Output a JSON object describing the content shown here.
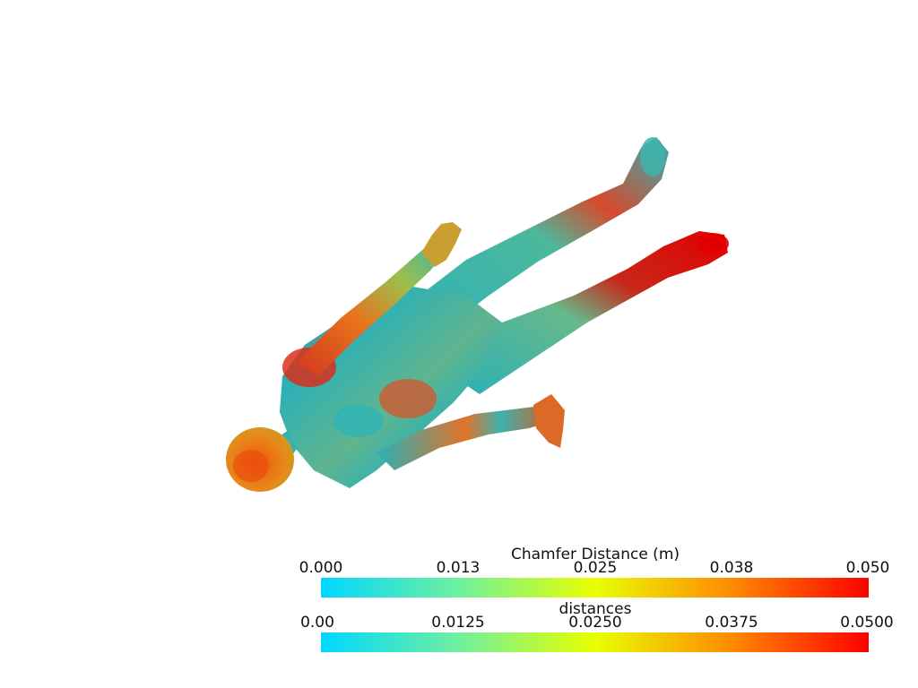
{
  "scalar_bars": [
    {
      "title": "Chamfer Distance (m)",
      "ticks": [
        "0.000",
        "0.013",
        "0.025",
        "0.038",
        "0.050"
      ],
      "range": [
        0,
        0.05
      ],
      "colormap": [
        "#00d7ff",
        "#6ef0a0",
        "#e8ff00",
        "#ff8a00",
        "#ff0000"
      ]
    },
    {
      "title": "distances",
      "ticks": [
        "0.00",
        "0.0125",
        "0.0250",
        "0.0375",
        "0.0500"
      ],
      "range": [
        0,
        0.05
      ],
      "colormap": [
        "#00d7ff",
        "#6ef0a0",
        "#e8ff00",
        "#ff8a00",
        "#ff0000"
      ]
    }
  ],
  "scene": {
    "background": "#ffffff",
    "object": "human-body-mesh",
    "low_color": "#16b6c8",
    "high_color": "#e01a00"
  }
}
